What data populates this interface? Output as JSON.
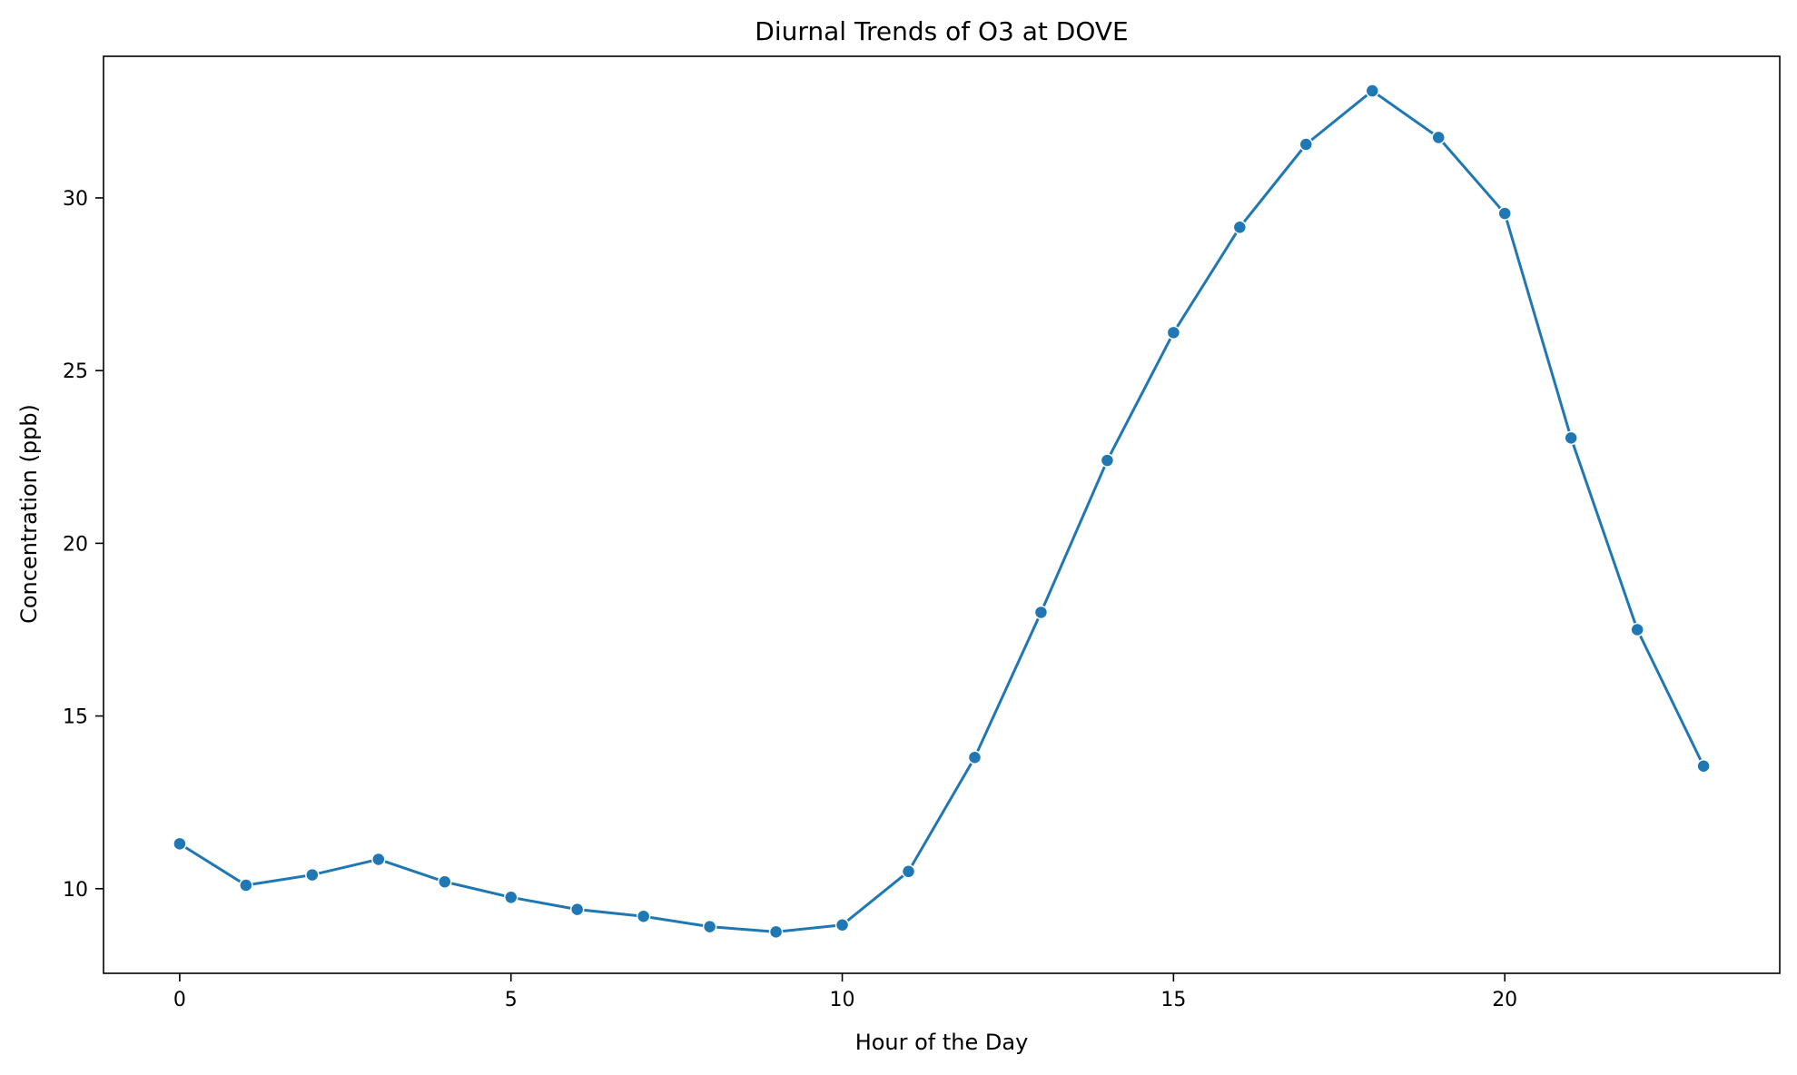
{
  "chart_data": {
    "type": "line",
    "title": "Diurnal Trends of O3 at DOVE",
    "xlabel": "Hour of the Day",
    "ylabel": "Concentration (ppb)",
    "xlim": [
      -1.15,
      24.15
    ],
    "ylim": [
      7.55,
      34.1
    ],
    "xticks": [
      0,
      5,
      10,
      15,
      20
    ],
    "yticks": [
      10,
      15,
      20,
      25,
      30
    ],
    "grid": false,
    "legend": "none",
    "series": [
      {
        "color": "#1f77b4",
        "marker": "circle",
        "x": [
          0,
          1,
          2,
          3,
          4,
          5,
          6,
          7,
          8,
          9,
          10,
          11,
          12,
          13,
          14,
          15,
          16,
          17,
          18,
          19,
          20,
          21,
          22,
          23
        ],
        "y": [
          11.3,
          10.1,
          10.4,
          10.85,
          10.2,
          9.75,
          9.4,
          9.2,
          8.9,
          8.75,
          8.95,
          10.5,
          13.8,
          18.0,
          22.4,
          26.1,
          29.15,
          31.55,
          33.1,
          31.75,
          29.55,
          23.05,
          17.5,
          13.55
        ]
      }
    ]
  }
}
